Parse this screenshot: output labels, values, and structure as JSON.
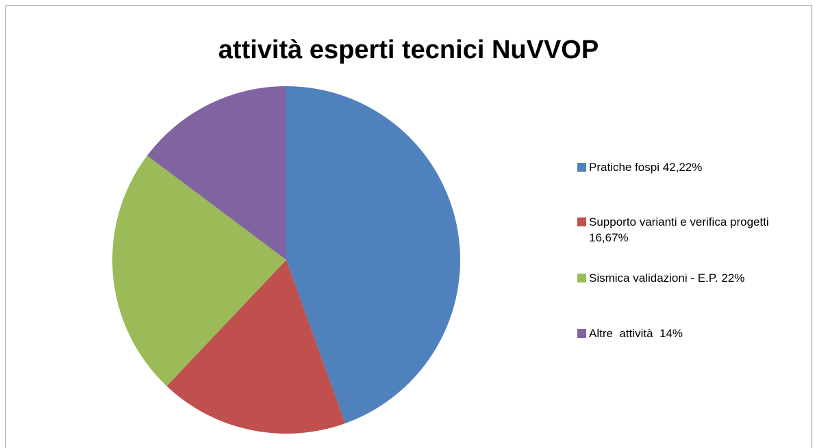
{
  "chart_data": {
    "type": "pie",
    "title": "attività esperti tecnici NuVVOP",
    "categories": [
      "Pratiche fospi 42,22%",
      "Supporto varianti e verifica progetti 16,67%",
      "Sismica validazioni - E.P. 22%",
      "Altre  attività  14%"
    ],
    "values": [
      42.22,
      16.67,
      22,
      14
    ],
    "colors": [
      "#4f81bd",
      "#c0504d",
      "#9bbb59",
      "#8064a2"
    ],
    "legend": "right"
  }
}
